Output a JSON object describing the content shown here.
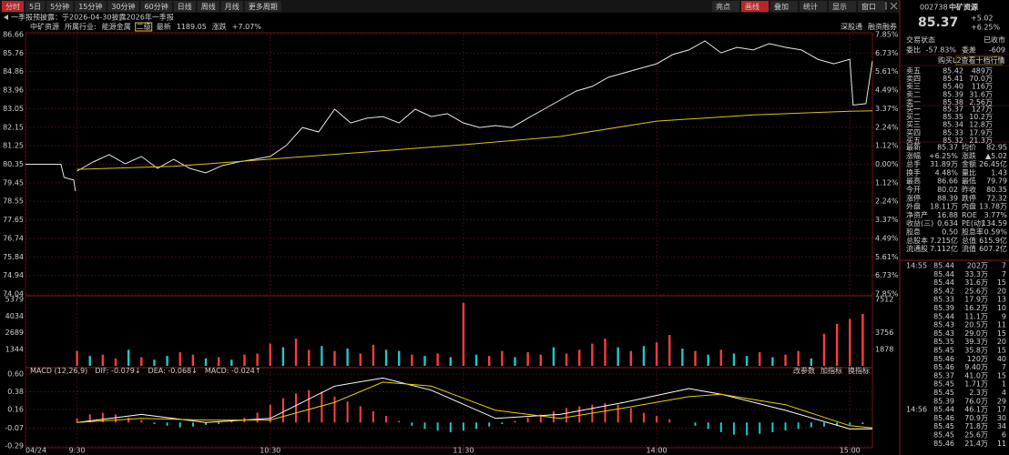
{
  "toolbar": {
    "periods": [
      "分时",
      "5日",
      "5分钟",
      "15分钟",
      "30分钟",
      "60分钟",
      "日线",
      "周线",
      "月线",
      "更多周期"
    ],
    "active": 0,
    "tools": [
      "亮点",
      "画线",
      "叠加",
      "统计",
      "显示",
      "窗口"
    ],
    "active_tool": 1
  },
  "notice": "一季报预披露：于2026-04-30披露2026年一季报",
  "info": {
    "name": "中矿资源",
    "industry_label": "所属行业:",
    "industry": "能源金属",
    "level": "二级",
    "latest_label": "最新",
    "latest": "1189.05",
    "change_label": "涨跌",
    "change": "+7.07%",
    "tags": [
      "深股通",
      "融资融券"
    ]
  },
  "chart_data": [
    {
      "type": "line",
      "xlim": [
        -16,
        247
      ],
      "xticks": [
        {
          "value": -16,
          "label": "04/24"
        },
        {
          "value": 0,
          "label": "9:30"
        },
        {
          "value": 60,
          "label": "10:30"
        },
        {
          "value": 120,
          "label": "11:30"
        },
        {
          "value": 180,
          "label": "14:00"
        },
        {
          "value": 240,
          "label": "15:00"
        }
      ],
      "ylim": [
        74.04,
        86.66
      ],
      "yticks": [
        86.66,
        85.76,
        84.86,
        83.96,
        83.05,
        82.15,
        81.25,
        80.35,
        79.45,
        78.55,
        77.65,
        76.74,
        75.84,
        74.94,
        74.04
      ],
      "y2lim": [
        -7.85,
        7.85
      ],
      "y2ticks": [
        {
          "value": 7.85,
          "label": "7.85%"
        },
        {
          "value": 6.73,
          "label": "6.73%"
        },
        {
          "value": 5.61,
          "label": "5.61%"
        },
        {
          "value": 4.49,
          "label": "4.49%"
        },
        {
          "value": 3.37,
          "label": "3.37%"
        },
        {
          "value": 2.24,
          "label": "2.24%"
        },
        {
          "value": 1.12,
          "label": "1.12%"
        },
        {
          "value": 0,
          "label": "0.00%"
        },
        {
          "value": -1.12,
          "label": "1.12%"
        },
        {
          "value": -2.24,
          "label": "2.24%"
        },
        {
          "value": -3.37,
          "label": "3.37%"
        },
        {
          "value": -4.49,
          "label": "4.49%"
        },
        {
          "value": -5.61,
          "label": "5.61%"
        },
        {
          "value": -6.73,
          "label": "6.73%"
        },
        {
          "value": -7.85,
          "label": "7.85%"
        }
      ],
      "grid": true,
      "series": [
        {
          "color": "#e6e6e6",
          "x": [
            -16,
            -5,
            -4,
            -1,
            -0.5,
            -0.2,
            0,
            5,
            10,
            15,
            20,
            25,
            30,
            35,
            40,
            45,
            50,
            55,
            60,
            65,
            70,
            75,
            80,
            85,
            90,
            95,
            100,
            105,
            110,
            115,
            120,
            125,
            130,
            135,
            140,
            145,
            150,
            155,
            160,
            165,
            170,
            175,
            180,
            185,
            190,
            195,
            200,
            205,
            210,
            215,
            220,
            225,
            230,
            235,
            240,
            241,
            245,
            247
          ],
          "values": [
            80.35,
            80.35,
            79.71,
            79.58,
            79.04,
            null,
            80.02,
            80.46,
            80.82,
            80.37,
            80.73,
            80.15,
            80.59,
            80.15,
            79.93,
            80.28,
            80.46,
            80.59,
            80.73,
            81.26,
            82.14,
            81.92,
            83.03,
            82.36,
            82.59,
            82.67,
            82.36,
            83.03,
            82.67,
            82.81,
            82.36,
            82.14,
            82.23,
            82.14,
            82.59,
            83.03,
            83.47,
            83.91,
            84.14,
            84.58,
            84.8,
            85.02,
            85.24,
            85.69,
            85.91,
            86.35,
            85.77,
            86.04,
            85.91,
            86.22,
            86.04,
            85.91,
            85.46,
            85.24,
            85.46,
            83.23,
            83.3,
            85.37
          ]
        },
        {
          "color": "#d8c21a",
          "x": [
            0,
            30,
            60,
            90,
            120,
            150,
            180,
            210,
            240,
            247
          ],
          "values": [
            80.1,
            80.25,
            80.6,
            80.95,
            81.3,
            81.7,
            82.45,
            82.75,
            82.93,
            82.95
          ]
        }
      ]
    },
    {
      "type": "bar",
      "xlim": [
        -16,
        247
      ],
      "ylim": [
        0,
        5379
      ],
      "yticks": [
        5379,
        4034,
        2689,
        1344
      ],
      "y2lim": [
        0,
        7512
      ],
      "y2ticks": [
        7512,
        3756,
        1878
      ],
      "x": [
        0,
        4,
        8,
        12,
        16,
        20,
        24,
        28,
        32,
        36,
        40,
        44,
        48,
        52,
        56,
        60,
        64,
        68,
        72,
        76,
        80,
        84,
        88,
        92,
        96,
        100,
        104,
        108,
        112,
        116,
        120,
        124,
        128,
        132,
        136,
        140,
        144,
        148,
        152,
        156,
        160,
        164,
        168,
        172,
        176,
        180,
        184,
        188,
        192,
        196,
        200,
        204,
        208,
        212,
        216,
        220,
        224,
        228,
        232,
        236,
        240,
        244
      ],
      "values": [
        1200,
        800,
        900,
        600,
        1300,
        700,
        500,
        800,
        1100,
        900,
        600,
        700,
        500,
        900,
        1000,
        1800,
        1500,
        2200,
        1300,
        1600,
        1200,
        1400,
        1000,
        1700,
        1300,
        1200,
        900,
        800,
        1000,
        700,
        5100,
        900,
        800,
        1200,
        700,
        1100,
        900,
        1500,
        1000,
        1300,
        1800,
        2200,
        1500,
        1200,
        1600,
        1900,
        2500,
        1400,
        1200,
        900,
        1300,
        1000,
        800,
        1100,
        700,
        900,
        1200,
        600,
        2600,
        3400,
        3800,
        4200
      ],
      "up": [
        true,
        false,
        true,
        true,
        false,
        true,
        false,
        false,
        true,
        true,
        false,
        true,
        false,
        true,
        true,
        true,
        false,
        true,
        true,
        false,
        true,
        false,
        true,
        true,
        false,
        false,
        true,
        false,
        true,
        false,
        true,
        false,
        true,
        true,
        false,
        true,
        true,
        false,
        true,
        true,
        true,
        true,
        false,
        true,
        false,
        true,
        true,
        false,
        true,
        false,
        true,
        false,
        false,
        true,
        false,
        true,
        true,
        false,
        true,
        true,
        true,
        true
      ],
      "colors": {
        "up": "#ff3c3c",
        "down": "#1ec8c8"
      }
    },
    {
      "type": "macd",
      "title": "MACD (12,26,9)",
      "legend": [
        {
          "label": "DIF: -0.079↓",
          "color": "#ffffff"
        },
        {
          "label": "DEA: -0.068↓",
          "color": "#e8d000"
        },
        {
          "label": "MACD: -0.024↑",
          "color": "#e040e0"
        }
      ],
      "buttons": [
        "改参数",
        "加指标",
        "换指标"
      ],
      "xlim": [
        -16,
        247
      ],
      "ylim": [
        -0.29,
        0.6
      ],
      "yticks": [
        {
          "value": 0.6,
          "label": "0.60"
        },
        0.38,
        0.16,
        -0.07,
        -0.29
      ],
      "x": [
        0,
        4,
        8,
        12,
        16,
        20,
        24,
        28,
        32,
        36,
        40,
        44,
        48,
        52,
        56,
        60,
        64,
        68,
        72,
        76,
        80,
        84,
        88,
        92,
        96,
        100,
        104,
        108,
        112,
        116,
        120,
        124,
        128,
        132,
        136,
        140,
        144,
        148,
        152,
        156,
        160,
        164,
        168,
        172,
        176,
        180,
        184,
        188,
        192,
        196,
        200,
        204,
        208,
        212,
        216,
        220,
        224,
        228,
        232,
        236,
        240,
        244
      ],
      "values": [
        0.05,
        0.1,
        0.12,
        0.1,
        0.06,
        0.03,
        -0.02,
        -0.04,
        -0.06,
        -0.05,
        -0.03,
        -0.02,
        0.02,
        0.06,
        0.12,
        0.22,
        0.3,
        0.36,
        0.4,
        0.38,
        0.32,
        0.26,
        0.2,
        0.14,
        0.08,
        0.02,
        -0.04,
        -0.08,
        -0.1,
        -0.12,
        -0.1,
        -0.08,
        -0.05,
        -0.02,
        0.02,
        0.06,
        0.1,
        0.14,
        0.18,
        0.2,
        0.22,
        0.24,
        0.22,
        0.18,
        0.12,
        0.08,
        0.04,
        0.0,
        -0.04,
        -0.08,
        -0.12,
        -0.15,
        -0.16,
        -0.14,
        -0.12,
        -0.1,
        -0.08,
        -0.06,
        -0.05,
        -0.04,
        -0.03,
        -0.02
      ],
      "colors": {
        "up": "#ff4040",
        "down": "#1ec8c8"
      },
      "series": [
        {
          "color": "#ffffff",
          "x": [
            0,
            20,
            40,
            60,
            80,
            95,
            110,
            130,
            150,
            170,
            190,
            200,
            220,
            240,
            247
          ],
          "values": [
            0.0,
            0.1,
            0.0,
            0.05,
            0.45,
            0.55,
            0.4,
            0.05,
            0.1,
            0.25,
            0.42,
            0.35,
            0.15,
            -0.08,
            -0.079
          ]
        },
        {
          "color": "#e8d000",
          "x": [
            0,
            20,
            40,
            60,
            80,
            95,
            110,
            130,
            150,
            170,
            190,
            200,
            220,
            240,
            247
          ],
          "values": [
            0.0,
            0.05,
            0.03,
            0.03,
            0.25,
            0.5,
            0.45,
            0.15,
            0.05,
            0.18,
            0.32,
            0.35,
            0.22,
            -0.04,
            -0.068
          ]
        }
      ]
    }
  ],
  "quote": {
    "code": "002738",
    "name": "中矿资源",
    "price": "85.37",
    "change": "+5.02",
    "pct": "+6.25%",
    "status_label": "交易状态",
    "status": "已收市",
    "ratio_label": "委比",
    "ratio": "-57.83%",
    "diff_label": "委差",
    "diff": "-609",
    "l2": "购买L2查看十档行情"
  },
  "order_book": {
    "asks": [
      [
        "卖五",
        "85.42",
        "489万"
      ],
      [
        "卖四",
        "85.41",
        "70.0万"
      ],
      [
        "卖三",
        "85.40",
        "116万"
      ],
      [
        "卖二",
        "85.39",
        "31.6万"
      ],
      [
        "卖一",
        "85.38",
        "2.56万"
      ]
    ],
    "bids": [
      [
        "买一",
        "85.37",
        "127万"
      ],
      [
        "买二",
        "85.35",
        "10.2万"
      ],
      [
        "买三",
        "85.34",
        "12.8万"
      ],
      [
        "买四",
        "85.33",
        "17.9万"
      ],
      [
        "买五",
        "85.32",
        "21.3万"
      ]
    ]
  },
  "stats": [
    [
      "最新",
      "85.37",
      "up",
      "均价",
      "82.95",
      "up"
    ],
    [
      "涨幅",
      "+6.25%",
      "up",
      "涨跌",
      "▲5.02",
      "up"
    ],
    [
      "总手",
      "31.89万",
      "y",
      "金额",
      "26.45亿",
      "y"
    ],
    [
      "换手",
      "4.48%",
      "w",
      "量比",
      "1.43",
      "up"
    ],
    [
      "最高",
      "86.66",
      "up",
      "最低",
      "79.79",
      "down"
    ],
    [
      "今开",
      "80.02",
      "down",
      "昨收",
      "80.35",
      "w"
    ],
    [
      "涨停",
      "88.39",
      "up",
      "跌停",
      "72.32",
      "down"
    ],
    [
      "外盘",
      "18.11万",
      "up",
      "内盘",
      "13.78万",
      "down"
    ],
    [
      "净资产",
      "16.88",
      "w",
      "ROE",
      "3.77%",
      "w"
    ],
    [
      "收益(三)",
      "0.634",
      "w",
      "PE(动)",
      "134.59",
      "w"
    ],
    [
      "股息",
      "0.50",
      "w",
      "股息率",
      "0.59%",
      "w"
    ],
    [
      "总股本",
      "7.215亿",
      "w",
      "总值",
      "615.9亿",
      "w"
    ],
    [
      "流通股",
      "7.112亿",
      "w",
      "流值",
      "607.2亿",
      "w"
    ]
  ],
  "trades": [
    [
      "14:55",
      "85.44",
      "202万",
      "7",
      "down"
    ],
    [
      null,
      "85.44",
      "33.3万",
      "7",
      "up"
    ],
    [
      null,
      "85.44",
      "31.6万",
      "15",
      "up"
    ],
    [
      null,
      "85.42",
      "25.6万",
      "20",
      "down"
    ],
    [
      null,
      "85.33",
      "17.9万",
      "13",
      "down"
    ],
    [
      null,
      "85.39",
      "16.2万",
      "10",
      "up"
    ],
    [
      null,
      "85.44",
      "11.1万",
      "9",
      "up"
    ],
    [
      null,
      "85.43",
      "20.5万",
      "11",
      "down"
    ],
    [
      null,
      "85.43",
      "29.0万",
      "15",
      "up"
    ],
    [
      null,
      "85.35",
      "39.3万",
      "20",
      "down"
    ],
    [
      null,
      "85.45",
      "35.8万",
      "15",
      "up"
    ],
    [
      null,
      "85.46",
      "120万",
      "40",
      "up"
    ],
    [
      null,
      "85.46",
      "9.40万",
      "7",
      "down"
    ],
    [
      null,
      "85.37",
      "41.0万",
      "15",
      "down"
    ],
    [
      null,
      "85.45",
      "1.71万",
      "1",
      "up"
    ],
    [
      null,
      "85.45",
      "2.3万",
      "4",
      "up"
    ],
    [
      null,
      "85.39",
      "76.0万",
      "29",
      "down"
    ],
    [
      "14:56",
      "85.44",
      "46.1万",
      "17",
      "up"
    ],
    [
      null,
      "85.46",
      "70.9万",
      "30",
      "up"
    ],
    [
      null,
      "85.45",
      "71.8万",
      "34",
      "down"
    ],
    [
      null,
      "85.45",
      "25.6万",
      "6",
      "down"
    ],
    [
      null,
      "85.46",
      "21.4万",
      "11",
      "up"
    ]
  ]
}
